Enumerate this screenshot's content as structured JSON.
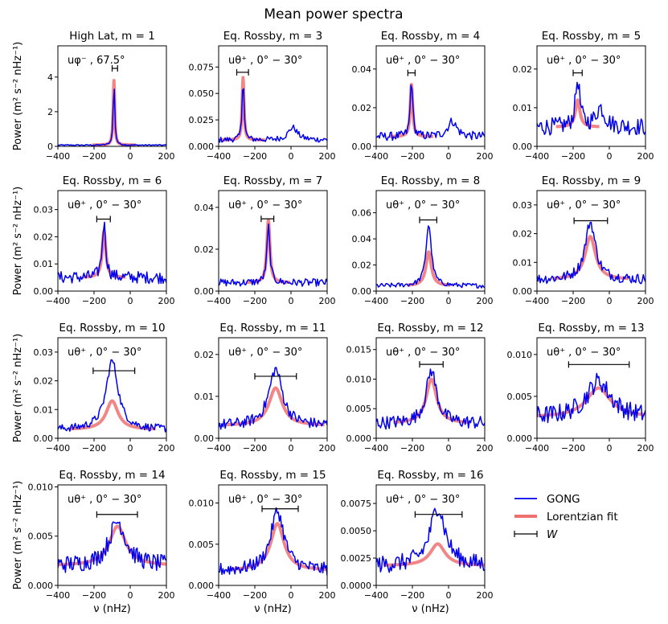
{
  "chart_data": {
    "type": "line",
    "title": "Mean power spectra",
    "xlabel": "ν (nHz)",
    "ylabel": "Power (m² s⁻² nHz⁻¹)",
    "xlim": [
      -400,
      200
    ],
    "x_ticks": [
      "−400",
      "−200",
      "0",
      "200"
    ],
    "legend": {
      "placement": "bottom-right",
      "items": [
        {
          "label": "GONG",
          "color": "#0000ee",
          "kind": "line"
        },
        {
          "label": "Lorentzian fit",
          "color": "#f07070",
          "kind": "thick-line"
        },
        {
          "label": "W",
          "color": "#000000",
          "kind": "errorbar"
        }
      ]
    },
    "series_names": [
      "GONG",
      "Lorentzian fit"
    ],
    "panels": [
      {
        "title": "High Lat, m = 1",
        "annotation": "uφ⁻ , 67.5°",
        "ylim": [
          0,
          5.8
        ],
        "yticks": [
          0,
          2,
          4
        ],
        "ytick_labels": [
          "0",
          "2",
          "4"
        ],
        "peak_nu": -90,
        "peak_gong": 3.8,
        "peak_fit": 3.8,
        "gamma": 5,
        "baseline": 0.07,
        "bump_nu": null,
        "bump_amp": 0,
        "W": [
          -100,
          -70
        ],
        "W_y": 4.5,
        "ylabel_shown": true
      },
      {
        "title": "Eq. Rossby, m = 3",
        "annotation": "uθ⁺ , 0° − 30°",
        "ylim": [
          0,
          0.095
        ],
        "yticks": [
          0,
          0.025,
          0.05,
          0.075
        ],
        "ytick_labels": [
          "0.000",
          "0.025",
          "0.050",
          "0.075"
        ],
        "peak_nu": -265,
        "peak_gong": 0.068,
        "peak_fit": 0.065,
        "gamma": 6,
        "baseline": 0.006,
        "bump_nu": 10,
        "bump_amp": 0.012,
        "W": [
          -300,
          -235
        ],
        "W_y": 0.07,
        "ylabel_shown": false
      },
      {
        "title": "Eq. Rossby, m = 4",
        "annotation": "uθ⁺ , 0° − 30°",
        "ylim": [
          0,
          0.052
        ],
        "yticks": [
          0,
          0.02,
          0.04
        ],
        "ytick_labels": [
          "0.00",
          "0.02",
          "0.04"
        ],
        "peak_nu": -205,
        "peak_gong": 0.035,
        "peak_fit": 0.032,
        "gamma": 8,
        "baseline": 0.005,
        "bump_nu": 20,
        "bump_amp": 0.008,
        "W": [
          -225,
          -185
        ],
        "W_y": 0.038,
        "ylabel_shown": false
      },
      {
        "title": "Eq. Rossby, m = 5",
        "annotation": "uθ⁺ , 0° − 30°",
        "ylim": [
          0,
          0.026
        ],
        "yticks": [
          0,
          0.01,
          0.02
        ],
        "ytick_labels": [
          "0.00",
          "0.01",
          "0.02"
        ],
        "peak_nu": -175,
        "peak_gong": 0.017,
        "peak_fit": 0.012,
        "gamma": 15,
        "baseline": 0.005,
        "bump_nu": -50,
        "bump_amp": 0.005,
        "W": [
          -200,
          -150
        ],
        "W_y": 0.019,
        "ylabel_shown": false
      },
      {
        "title": "Eq. Rossby, m = 6",
        "annotation": "uθ⁺ , 0° − 30°",
        "ylim": [
          0,
          0.037
        ],
        "yticks": [
          0,
          0.01,
          0.02,
          0.03
        ],
        "ytick_labels": [
          "0.00",
          "0.01",
          "0.02",
          "0.03"
        ],
        "peak_nu": -145,
        "peak_gong": 0.025,
        "peak_fit": 0.022,
        "gamma": 12,
        "baseline": 0.005,
        "bump_nu": null,
        "bump_amp": 0,
        "W": [
          -185,
          -110
        ],
        "W_y": 0.0265,
        "ylabel_shown": true
      },
      {
        "title": "Eq. Rossby, m = 7",
        "annotation": "uθ⁺ , 0° − 30°",
        "ylim": [
          0,
          0.048
        ],
        "yticks": [
          0,
          0.02,
          0.04
        ],
        "ytick_labels": [
          "0.00",
          "0.02",
          "0.04"
        ],
        "peak_nu": -125,
        "peak_gong": 0.031,
        "peak_fit": 0.034,
        "gamma": 10,
        "baseline": 0.004,
        "bump_nu": null,
        "bump_amp": 0,
        "W": [
          -165,
          -95
        ],
        "W_y": 0.0345,
        "ylabel_shown": false
      },
      {
        "title": "Eq. Rossby, m = 8",
        "annotation": "uθ⁺ , 0° − 30°",
        "ylim": [
          0,
          0.077
        ],
        "yticks": [
          0,
          0.02,
          0.04,
          0.06
        ],
        "ytick_labels": [
          "0.00",
          "0.02",
          "0.04",
          "0.06"
        ],
        "peak_nu": -110,
        "peak_gong": 0.051,
        "peak_fit": 0.03,
        "gamma": 18,
        "baseline": 0.004,
        "bump_nu": null,
        "bump_amp": 0,
        "W": [
          -160,
          -65
        ],
        "W_y": 0.0545,
        "ylabel_shown": false
      },
      {
        "title": "Eq. Rossby, m = 9",
        "annotation": "uθ⁺ , 0° − 30°",
        "ylim": [
          0,
          0.035
        ],
        "yticks": [
          0,
          0.01,
          0.02,
          0.03
        ],
        "ytick_labels": [
          "0.00",
          "0.01",
          "0.02",
          "0.03"
        ],
        "peak_nu": -105,
        "peak_gong": 0.024,
        "peak_fit": 0.019,
        "gamma": 35,
        "baseline": 0.004,
        "bump_nu": null,
        "bump_amp": 0,
        "W": [
          -195,
          -10
        ],
        "W_y": 0.0245,
        "ylabel_shown": false
      },
      {
        "title": "Eq. Rossby, m = 10",
        "annotation": "uθ⁺ , 0° − 30°",
        "ylim": [
          0,
          0.035
        ],
        "yticks": [
          0,
          0.01,
          0.02,
          0.03
        ],
        "ytick_labels": [
          "0.00",
          "0.01",
          "0.02",
          "0.03"
        ],
        "peak_nu": -100,
        "peak_gong": 0.027,
        "peak_fit": 0.013,
        "gamma": 40,
        "baseline": 0.003,
        "bump_nu": null,
        "bump_amp": 0,
        "W": [
          -205,
          25
        ],
        "W_y": 0.0235,
        "ylabel_shown": true
      },
      {
        "title": "Eq. Rossby, m = 11",
        "annotation": "uθ⁺ , 0° − 30°",
        "ylim": [
          0,
          0.024
        ],
        "yticks": [
          0,
          0.01,
          0.02
        ],
        "ytick_labels": [
          "0.00",
          "0.01",
          "0.02"
        ],
        "peak_nu": -85,
        "peak_gong": 0.0165,
        "peak_fit": 0.012,
        "gamma": 45,
        "baseline": 0.003,
        "bump_nu": null,
        "bump_amp": 0,
        "W": [
          -200,
          30
        ],
        "W_y": 0.0148,
        "ylabel_shown": false
      },
      {
        "title": "Eq. Rossby, m = 12",
        "annotation": "uθ⁺ , 0° − 30°",
        "ylim": [
          0,
          0.017
        ],
        "yticks": [
          0,
          0.005,
          0.01,
          0.015
        ],
        "ytick_labels": [
          "0.000",
          "0.005",
          "0.010",
          "0.015"
        ],
        "peak_nu": -95,
        "peak_gong": 0.0115,
        "peak_fit": 0.01,
        "gamma": 35,
        "baseline": 0.0025,
        "bump_nu": null,
        "bump_amp": 0,
        "W": [
          -160,
          -30
        ],
        "W_y": 0.0125,
        "ylabel_shown": false
      },
      {
        "title": "Eq. Rossby, m = 13",
        "annotation": "uθ⁺ , 0° − 30°",
        "ylim": [
          0,
          0.012
        ],
        "yticks": [
          0,
          0.005,
          0.01
        ],
        "ytick_labels": [
          "0.000",
          "0.005",
          "0.010"
        ],
        "peak_nu": -60,
        "peak_gong": 0.0068,
        "peak_fit": 0.006,
        "gamma": 80,
        "baseline": 0.0025,
        "bump_nu": null,
        "bump_amp": 0,
        "W": [
          -225,
          110
        ],
        "W_y": 0.0088,
        "ylabel_shown": false
      },
      {
        "title": "Eq. Rossby, m = 14",
        "annotation": "uθ⁺ , 0° − 30°",
        "ylim": [
          0,
          0.0102
        ],
        "yticks": [
          0,
          0.005,
          0.01
        ],
        "ytick_labels": [
          "0.000",
          "0.005",
          "0.010"
        ],
        "peak_nu": -70,
        "peak_gong": 0.0065,
        "peak_fit": 0.006,
        "gamma": 55,
        "baseline": 0.002,
        "bump_nu": null,
        "bump_amp": 0,
        "W": [
          -185,
          40
        ],
        "W_y": 0.0072,
        "ylabel_shown": true
      },
      {
        "title": "Eq. Rossby, m = 15",
        "annotation": "uθ⁺ , 0° − 30°",
        "ylim": [
          0,
          0.0122
        ],
        "yticks": [
          0,
          0.005,
          0.01
        ],
        "ytick_labels": [
          "0.000",
          "0.005",
          "0.010"
        ],
        "peak_nu": -75,
        "peak_gong": 0.009,
        "peak_fit": 0.0075,
        "gamma": 45,
        "baseline": 0.0018,
        "bump_nu": null,
        "bump_amp": 0,
        "W": [
          -160,
          40
        ],
        "W_y": 0.0093,
        "ylabel_shown": false
      },
      {
        "title": "Eq. Rossby, m = 16",
        "annotation": "uθ⁺ , 0° − 30°",
        "ylim": [
          0,
          0.0092
        ],
        "yticks": [
          0,
          0.0025,
          0.005,
          0.0075
        ],
        "ytick_labels": [
          "0.0000",
          "0.0025",
          "0.0050",
          "0.0075"
        ],
        "peak_nu": -60,
        "peak_gong": 0.0072,
        "peak_fit": 0.0038,
        "gamma": 50,
        "baseline": 0.0018,
        "bump_nu": null,
        "bump_amp": 0,
        "W": [
          -185,
          75
        ],
        "W_y": 0.0065,
        "ylabel_shown": false
      }
    ]
  }
}
